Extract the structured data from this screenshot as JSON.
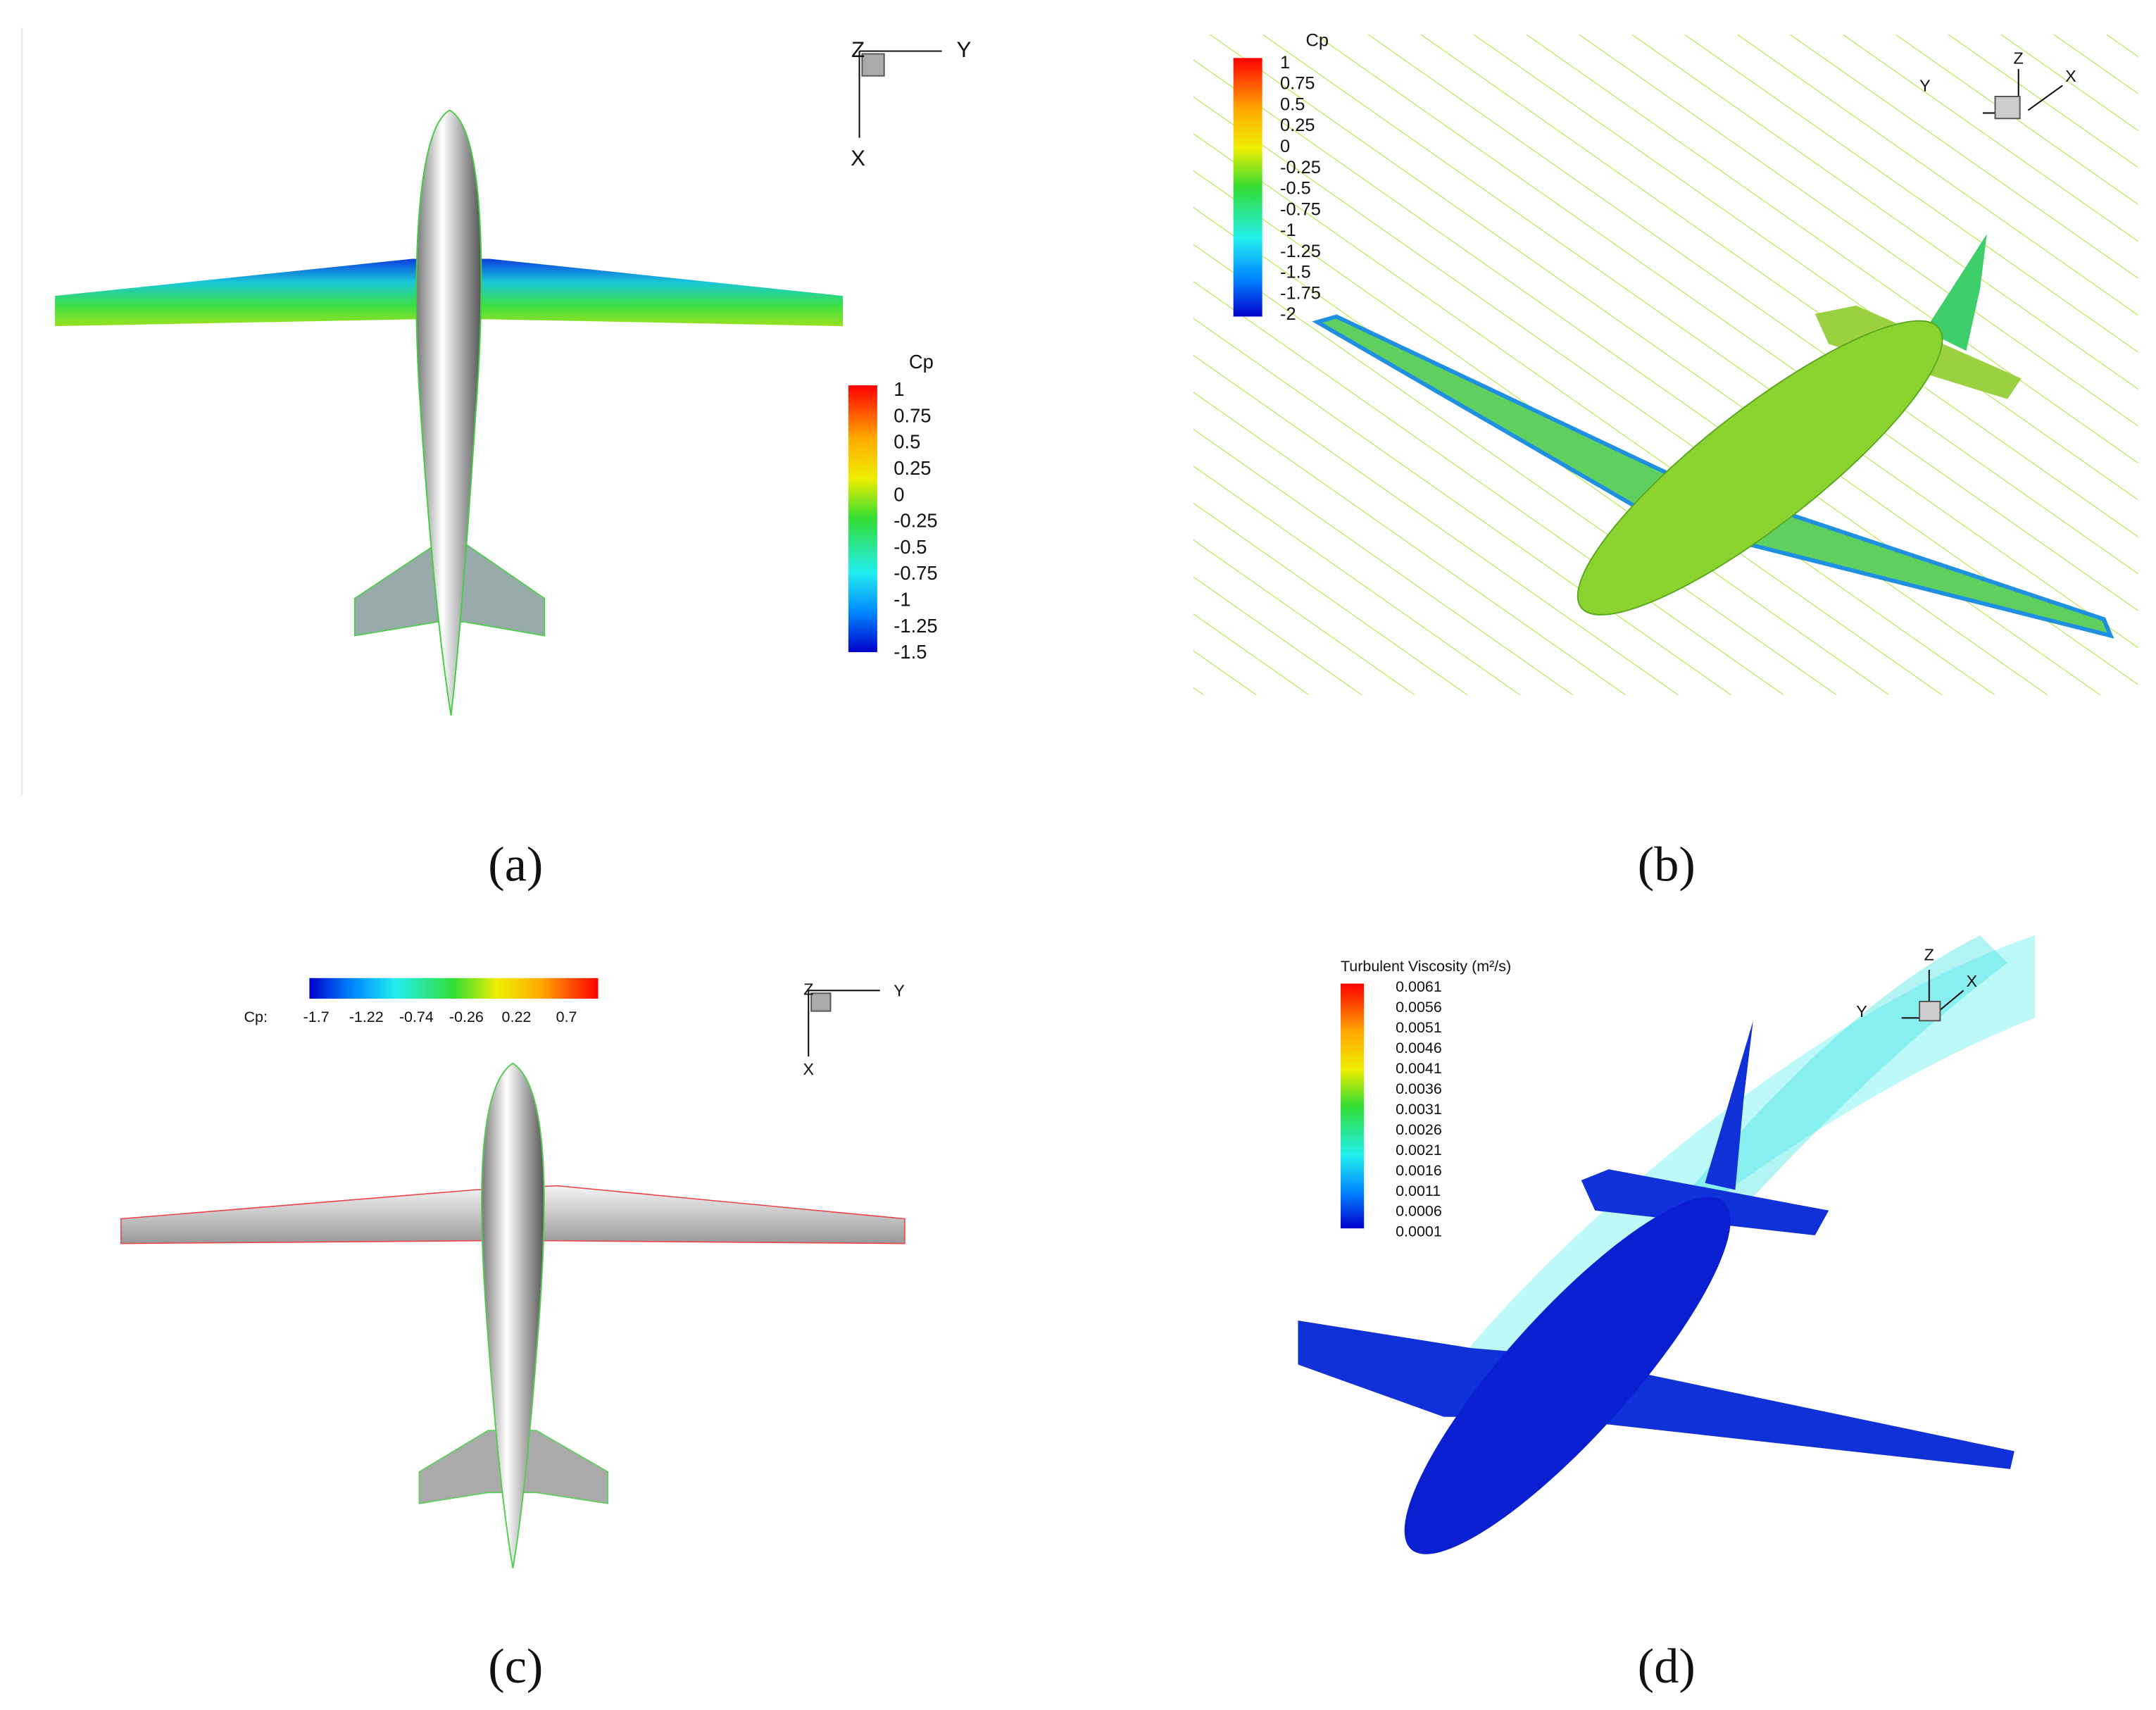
{
  "panels": [
    {
      "label": "(a)",
      "axes": {
        "z": "Z",
        "y": "Y",
        "x": "X"
      },
      "colorbar": {
        "title": "Cp",
        "ticks": [
          "1",
          "0.75",
          "0.5",
          "0.25",
          "0",
          "-0.25",
          "-0.5",
          "-0.75",
          "-1",
          "-1.25",
          "-1.5"
        ]
      }
    },
    {
      "label": "(b)",
      "axes": {
        "z": "Z",
        "y": "Y",
        "x": "X"
      },
      "colorbar": {
        "title": "Cp",
        "ticks": [
          "1",
          "0.75",
          "0.5",
          "0.25",
          "0",
          "-0.25",
          "-0.5",
          "-0.75",
          "-1",
          "-1.25",
          "-1.5",
          "-1.75",
          "-2"
        ]
      }
    },
    {
      "label": "(c)",
      "axes": {
        "z": "Z",
        "y": "Y",
        "x": "X"
      },
      "colorbar": {
        "title": "Cp:",
        "ticks": [
          "-1.7",
          "-1.22",
          "-0.74",
          "-0.26",
          "0.22",
          "0.7"
        ]
      }
    },
    {
      "label": "(d)",
      "axes": {
        "z": "Z",
        "y": "Y",
        "x": "X"
      },
      "colorbar": {
        "title": "Turbulent Viscosity  (m²/s)",
        "ticks": [
          "0.0061",
          "0.0056",
          "0.0051",
          "0.0046",
          "0.0041",
          "0.0036",
          "0.0031",
          "0.0026",
          "0.0021",
          "0.0016",
          "0.0011",
          "0.0006",
          "0.0001"
        ]
      }
    }
  ]
}
